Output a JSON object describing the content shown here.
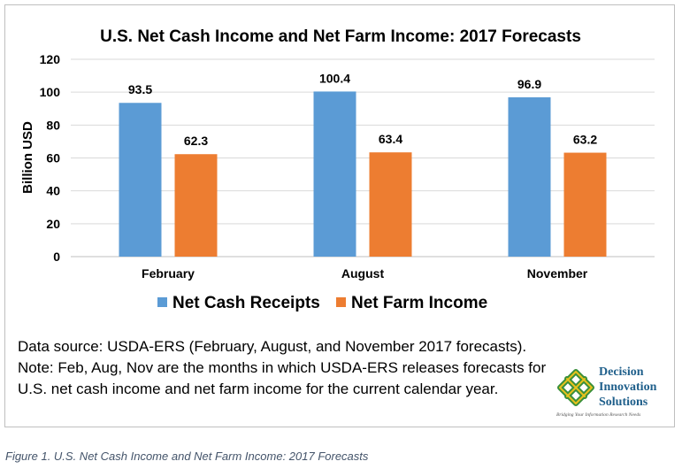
{
  "chart_data": {
    "type": "bar",
    "title": "U.S. Net Cash Income and Net Farm Income: 2017 Forecasts",
    "xlabel": "",
    "ylabel": "Billion USD",
    "ylim": [
      0,
      120
    ],
    "yticks": [
      0,
      20,
      40,
      60,
      80,
      100,
      120
    ],
    "categories": [
      "February",
      "August",
      "November"
    ],
    "series": [
      {
        "name": "Net Cash Receipts",
        "color": "#5b9bd5",
        "values": [
          93.5,
          100.4,
          96.9
        ]
      },
      {
        "name": "Net Farm Income",
        "color": "#ed7d31",
        "values": [
          62.3,
          63.4,
          63.2
        ]
      }
    ],
    "value_labels": [
      [
        "93.5",
        "100.4",
        "96.9"
      ],
      [
        "62.3",
        "63.4",
        "63.2"
      ]
    ],
    "grid": true,
    "legend": "bottom"
  },
  "notes": {
    "line1": "Data source: USDA-ERS (February, August, and November 2017 forecasts).",
    "line2": "Note: Feb, Aug, Nov are the months in which USDA-ERS releases forecasts for",
    "line3": "U.S. net cash income and net farm income for the current calendar year."
  },
  "logo": {
    "line1": "Decision",
    "line2": "Innovation",
    "line3": "Solutions",
    "tagline": "Bridging Your Information Research Needs",
    "colors": {
      "green": "#3a8f3a",
      "yellow": "#e8c21c"
    }
  },
  "caption": "Figure 1. U.S. Net Cash Income and Net Farm Income: 2017 Forecasts"
}
